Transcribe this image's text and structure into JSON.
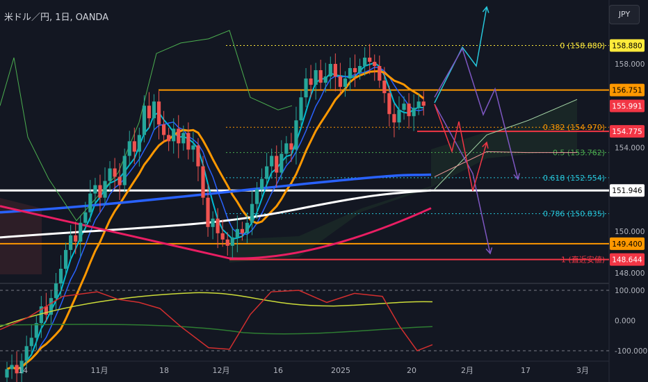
{
  "header": {
    "title": "米ドル／円, 1日, OANDA",
    "currency": "JPY"
  },
  "colors": {
    "bg": "#131722",
    "up": "#26a69a",
    "down": "#ef5350",
    "white_ma": "#ffffff",
    "blue_ma": "#2962ff",
    "orange_ma": "#ff9800",
    "pink": "#e91e63",
    "fib_yellow": "#ffeb3b",
    "fib_orange": "#ff9800",
    "fib_green": "#4caf50",
    "fib_teal": "#26c6da",
    "fib_red": "#f23645",
    "arrow_cyan": "#26c6da",
    "arrow_purple": "#7e57c2",
    "arrow_red": "#f23645"
  },
  "chart_data": {
    "type": "candlestick",
    "price_axis": {
      "ticks": [
        {
          "value": 158.0,
          "label": "158.000"
        },
        {
          "value": 154.0,
          "label": "154.000"
        },
        {
          "value": 150.0,
          "label": "150.000"
        },
        {
          "value": 148.0,
          "label": "148.000"
        }
      ],
      "badges": [
        {
          "value": 158.88,
          "label": "158.880",
          "bg": "#ffeb3b",
          "fg": "#000000"
        },
        {
          "value": 156.751,
          "label": "156.751",
          "bg": "#ff9800",
          "fg": "#000000"
        },
        {
          "value": 155.991,
          "label": "155.991",
          "bg": "#f23645",
          "fg": "#ffffff"
        },
        {
          "value": 154.775,
          "label": "154.775",
          "bg": "#f23645",
          "fg": "#ffffff"
        },
        {
          "value": 151.946,
          "label": "151.946",
          "bg": "#ffffff",
          "fg": "#000000"
        },
        {
          "value": 149.4,
          "label": "149.400",
          "bg": "#ff9800",
          "fg": "#000000"
        },
        {
          "value": 148.644,
          "label": "148.644",
          "bg": "#f23645",
          "fg": "#ffffff"
        }
      ]
    },
    "oscillator_axis": {
      "ticks": [
        {
          "value": 100,
          "label": "100.000"
        },
        {
          "value": 0,
          "label": "0.000"
        },
        {
          "value": -100,
          "label": "-100.000"
        }
      ]
    },
    "x_ticks": [
      "14",
      "11月",
      "18",
      "12月",
      "16",
      "2025",
      "20",
      "2月",
      "17",
      "3月"
    ],
    "fib_levels": [
      {
        "ratio": "0",
        "price": 158.88,
        "label": "0 (158.880)",
        "color": "#ffeb3b"
      },
      {
        "ratio": "0.382",
        "price": 154.97,
        "label": "0.382 (154.970)",
        "color": "#ff9800"
      },
      {
        "ratio": "0.5",
        "price": 153.762,
        "label": "0.5 (153.762)",
        "color": "#4caf50"
      },
      {
        "ratio": "0.618",
        "price": 152.554,
        "label": "0.618 (152.554)",
        "color": "#26c6da"
      },
      {
        "ratio": "0.786",
        "price": 150.835,
        "label": "0.786 (150.835)",
        "color": "#26c6da"
      },
      {
        "ratio": "1",
        "price": 148.644,
        "label": "1 (直近安値)",
        "color": "#f23645"
      }
    ],
    "horizontal_levels": [
      {
        "price": 156.751,
        "color": "#ff9800"
      },
      {
        "price": 154.775,
        "color": "#f23645"
      },
      {
        "price": 151.946,
        "color": "#ffffff"
      },
      {
        "price": 149.4,
        "color": "#ff9800"
      },
      {
        "price": 148.644,
        "color": "#f23645"
      }
    ],
    "ohlc_close_series": [
      143.4,
      143.6,
      143.2,
      143.8,
      144.5,
      144.9,
      145.6,
      146.4,
      146.0,
      146.8,
      147.5,
      148.2,
      149.1,
      149.8,
      149.5,
      150.4,
      150.9,
      151.8,
      152.2,
      151.6,
      152.4,
      153.0,
      152.6,
      152.2,
      153.6,
      154.3,
      153.8,
      154.6,
      156.0,
      155.4,
      156.2,
      155.1,
      154.6,
      154.3,
      154.9,
      154.2,
      154.7,
      153.9,
      154.1,
      153.1,
      151.6,
      150.2,
      150.6,
      149.9,
      149.6,
      149.3,
      149.7,
      150.1,
      149.9,
      150.4,
      151.3,
      152.0,
      152.5,
      153.1,
      153.6,
      152.8,
      153.7,
      154.2,
      153.9,
      155.3,
      156.4,
      157.3,
      157.0,
      157.7,
      157.1,
      157.4,
      158.0,
      157.4,
      156.9,
      157.3,
      157.8,
      157.6,
      157.9,
      158.3,
      158.1,
      157.9,
      157.2,
      156.6,
      155.6,
      155.2,
      155.8,
      156.1,
      155.5,
      155.9,
      156.2,
      156.0
    ],
    "scenario_arrows": [
      {
        "color": "#26c6da",
        "label": "bullish"
      },
      {
        "color": "#7e57c2",
        "label": "bearish"
      },
      {
        "color": "#f23645",
        "label": "range"
      }
    ]
  }
}
